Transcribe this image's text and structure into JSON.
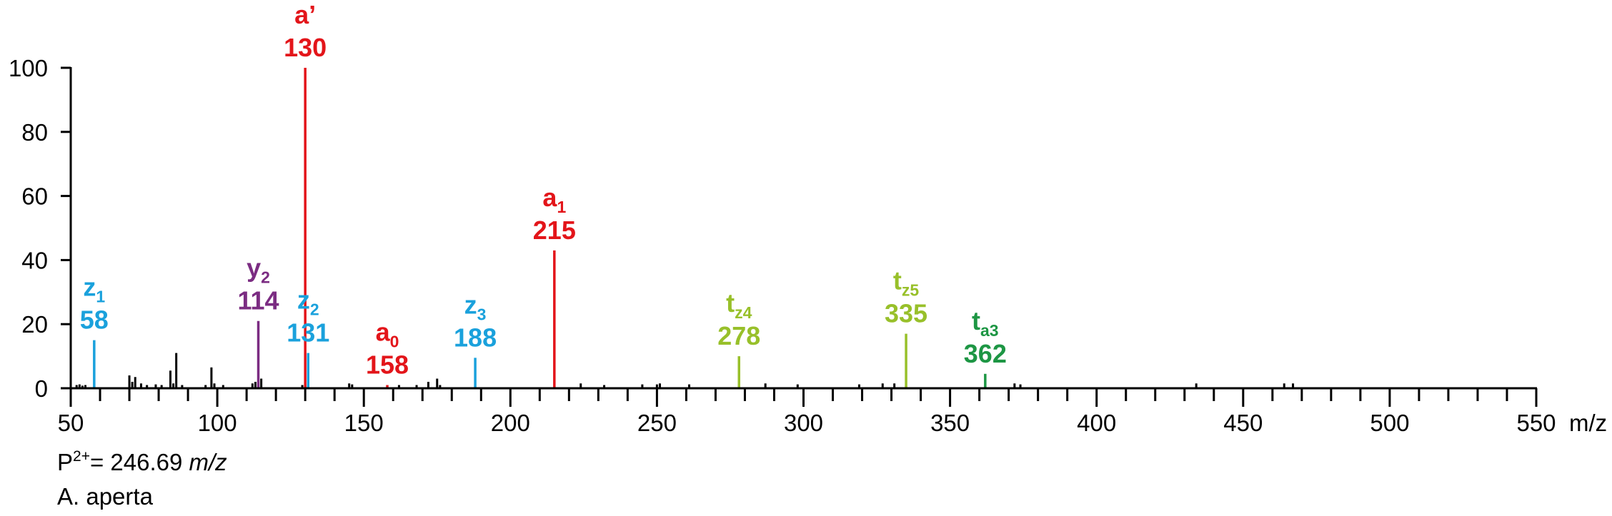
{
  "chart_data": {
    "type": "bar",
    "xlabel": "m/z",
    "ylabel": "",
    "xlim": [
      50,
      550
    ],
    "ylim": [
      0,
      100
    ],
    "x_ticks": [
      50,
      100,
      150,
      200,
      250,
      300,
      350,
      400,
      450,
      500,
      550
    ],
    "y_ticks": [
      0,
      20,
      40,
      60,
      80,
      100
    ],
    "colors": {
      "unlabeled": "#000000",
      "a": "#e3151a",
      "z": "#1aa1dc",
      "y": "#7b2c82",
      "tz": "#98c02a",
      "ta": "#1d9644"
    },
    "annotated_peaks": [
      {
        "ion": "z",
        "sub": "1",
        "mz": 58,
        "intensity": 15,
        "color_key": "z",
        "mz_label": "58"
      },
      {
        "ion": "y",
        "sub": "2",
        "mz": 114,
        "intensity": 21,
        "color_key": "y",
        "mz_label": "114"
      },
      {
        "ion": "a’",
        "sub": "",
        "mz": 130,
        "intensity": 100,
        "color_key": "a",
        "mz_label": "130"
      },
      {
        "ion": "z",
        "sub": "2",
        "mz": 131,
        "intensity": 11,
        "color_key": "z",
        "mz_label": "131"
      },
      {
        "ion": "a",
        "sub": "0",
        "mz": 158,
        "intensity": 1,
        "color_key": "a",
        "mz_label": "158"
      },
      {
        "ion": "z",
        "sub": "3",
        "mz": 188,
        "intensity": 9.5,
        "color_key": "z",
        "mz_label": "188"
      },
      {
        "ion": "a",
        "sub": "1",
        "mz": 215,
        "intensity": 43,
        "color_key": "a",
        "mz_label": "215"
      },
      {
        "ion": "t",
        "sub": "z4",
        "mz": 278,
        "intensity": 10,
        "color_key": "tz",
        "mz_label": "278"
      },
      {
        "ion": "t",
        "sub": "z5",
        "mz": 335,
        "intensity": 17,
        "color_key": "tz",
        "mz_label": "335"
      },
      {
        "ion": "t",
        "sub": "a3",
        "mz": 362,
        "intensity": 4.5,
        "color_key": "ta",
        "mz_label": "362"
      }
    ],
    "unlabeled_peaks": [
      [
        52,
        1
      ],
      [
        53,
        1.2
      ],
      [
        54,
        0.8
      ],
      [
        55,
        1
      ],
      [
        70,
        4
      ],
      [
        71,
        2
      ],
      [
        72,
        3.5
      ],
      [
        74,
        1.5
      ],
      [
        76,
        1
      ],
      [
        79,
        1.2
      ],
      [
        81,
        1
      ],
      [
        84,
        5.5
      ],
      [
        85,
        1.5
      ],
      [
        86,
        11
      ],
      [
        88,
        1
      ],
      [
        96,
        1
      ],
      [
        98,
        6.5
      ],
      [
        99,
        1.5
      ],
      [
        102,
        1
      ],
      [
        112,
        1.5
      ],
      [
        113,
        2
      ],
      [
        115,
        3
      ],
      [
        129,
        1
      ],
      [
        145,
        1.5
      ],
      [
        146,
        1.2
      ],
      [
        162,
        1
      ],
      [
        168,
        1
      ],
      [
        172,
        2
      ],
      [
        175,
        3
      ],
      [
        176,
        1
      ],
      [
        224,
        1.5
      ],
      [
        232,
        1
      ],
      [
        245,
        1.2
      ],
      [
        250,
        1.2
      ],
      [
        251,
        1.5
      ],
      [
        261,
        1.2
      ],
      [
        287,
        1.5
      ],
      [
        298,
        1.2
      ],
      [
        319,
        1.2
      ],
      [
        327,
        1.5
      ],
      [
        331,
        1.5
      ],
      [
        372,
        1.5
      ],
      [
        374,
        1.2
      ],
      [
        434,
        1.5
      ],
      [
        464,
        1.5
      ],
      [
        467,
        1.5
      ]
    ]
  },
  "notes": {
    "precursor_prefix": "P",
    "precursor_charge": "2+",
    "precursor_value": "= 246.69 ",
    "precursor_unit": "m/z",
    "species": "A. aperta"
  }
}
